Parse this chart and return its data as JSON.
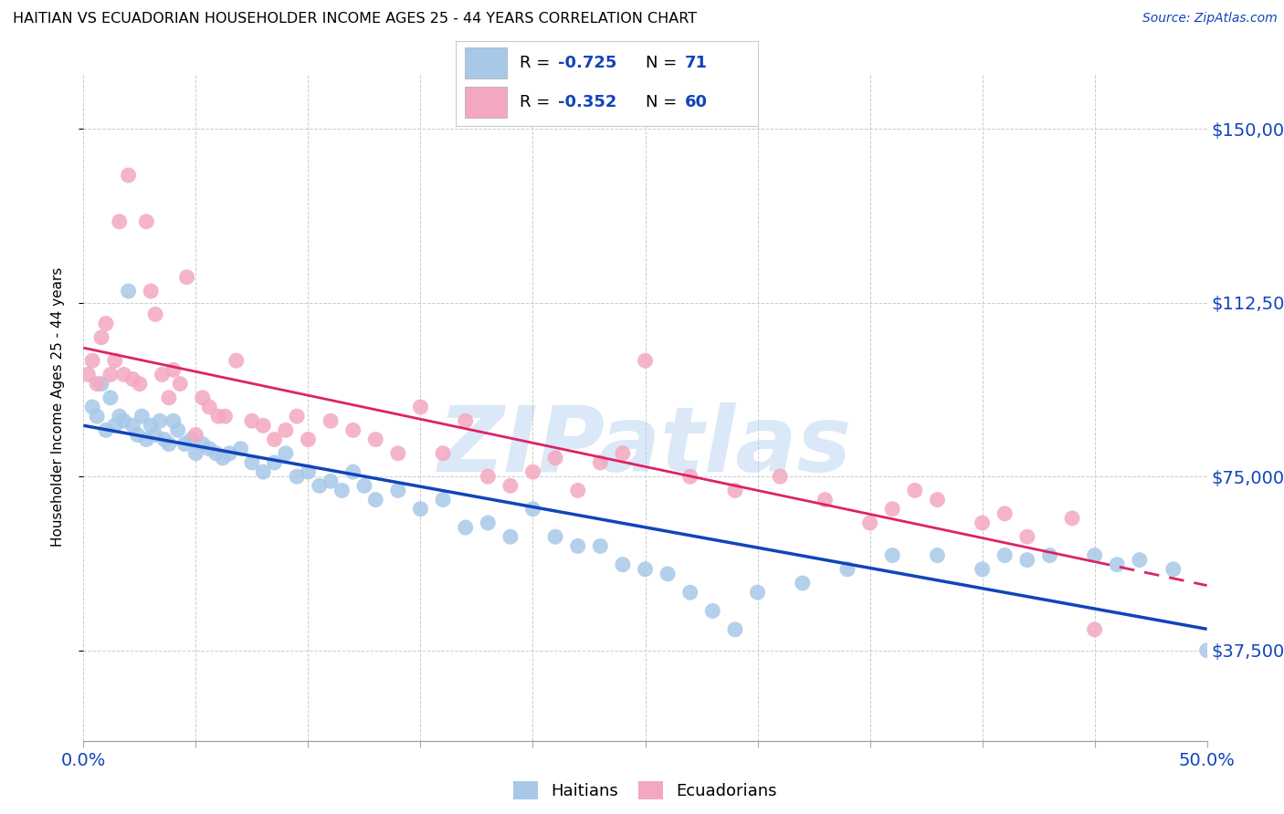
{
  "title": "HAITIAN VS ECUADORIAN HOUSEHOLDER INCOME AGES 25 - 44 YEARS CORRELATION CHART",
  "source": "Source: ZipAtlas.com",
  "ylabel": "Householder Income Ages 25 - 44 years",
  "xmin": 0.0,
  "xmax": 50.0,
  "ymin": 18000,
  "ymax": 162000,
  "yticks": [
    37500,
    75000,
    112500,
    150000
  ],
  "ytick_labels": [
    "$37,500",
    "$75,000",
    "$112,500",
    "$150,000"
  ],
  "haitian_color": "#a8c8e8",
  "haitian_line_color": "#1144bb",
  "ecuadorian_color": "#f4a8c0",
  "ecuadorian_line_color": "#dd2266",
  "watermark": "ZIPatlas",
  "legend_R_haitian": "-0.725",
  "legend_N_haitian": "71",
  "legend_R_ecuadorian": "-0.352",
  "legend_N_ecuadorian": "60",
  "haitian_x": [
    0.4,
    0.6,
    0.8,
    1.0,
    1.2,
    1.4,
    1.6,
    1.8,
    2.0,
    2.2,
    2.4,
    2.6,
    2.8,
    3.0,
    3.2,
    3.4,
    3.6,
    3.8,
    4.0,
    4.2,
    4.5,
    4.8,
    5.0,
    5.3,
    5.6,
    5.9,
    6.2,
    6.5,
    7.0,
    7.5,
    8.0,
    8.5,
    9.0,
    9.5,
    10.0,
    10.5,
    11.0,
    11.5,
    12.0,
    12.5,
    13.0,
    14.0,
    15.0,
    16.0,
    17.0,
    18.0,
    19.0,
    20.0,
    21.0,
    22.0,
    23.0,
    24.0,
    25.0,
    26.0,
    27.0,
    28.0,
    29.0,
    30.0,
    32.0,
    34.0,
    36.0,
    38.0,
    40.0,
    41.0,
    42.0,
    43.0,
    45.0,
    46.0,
    47.0,
    48.5,
    50.0
  ],
  "haitian_y": [
    90000,
    88000,
    95000,
    85000,
    92000,
    86000,
    88000,
    87000,
    115000,
    86000,
    84000,
    88000,
    83000,
    86000,
    84000,
    87000,
    83000,
    82000,
    87000,
    85000,
    82000,
    83000,
    80000,
    82000,
    81000,
    80000,
    79000,
    80000,
    81000,
    78000,
    76000,
    78000,
    80000,
    75000,
    76000,
    73000,
    74000,
    72000,
    76000,
    73000,
    70000,
    72000,
    68000,
    70000,
    64000,
    65000,
    62000,
    68000,
    62000,
    60000,
    60000,
    56000,
    55000,
    54000,
    50000,
    46000,
    42000,
    50000,
    52000,
    55000,
    58000,
    58000,
    55000,
    58000,
    57000,
    58000,
    58000,
    56000,
    57000,
    55000,
    37500
  ],
  "ecuadorian_x": [
    0.2,
    0.4,
    0.6,
    0.8,
    1.0,
    1.2,
    1.4,
    1.6,
    1.8,
    2.0,
    2.2,
    2.5,
    2.8,
    3.0,
    3.2,
    3.5,
    3.8,
    4.0,
    4.3,
    4.6,
    5.0,
    5.3,
    5.6,
    6.0,
    6.3,
    6.8,
    7.5,
    8.0,
    8.5,
    9.0,
    9.5,
    10.0,
    11.0,
    12.0,
    13.0,
    14.0,
    15.0,
    16.0,
    17.0,
    18.0,
    19.0,
    20.0,
    21.0,
    22.0,
    23.0,
    24.0,
    25.0,
    27.0,
    29.0,
    31.0,
    33.0,
    35.0,
    36.0,
    37.0,
    38.0,
    40.0,
    41.0,
    42.0,
    44.0,
    45.0
  ],
  "ecuadorian_y": [
    97000,
    100000,
    95000,
    105000,
    108000,
    97000,
    100000,
    130000,
    97000,
    140000,
    96000,
    95000,
    130000,
    115000,
    110000,
    97000,
    92000,
    98000,
    95000,
    118000,
    84000,
    92000,
    90000,
    88000,
    88000,
    100000,
    87000,
    86000,
    83000,
    85000,
    88000,
    83000,
    87000,
    85000,
    83000,
    80000,
    90000,
    80000,
    87000,
    75000,
    73000,
    76000,
    79000,
    72000,
    78000,
    80000,
    100000,
    75000,
    72000,
    75000,
    70000,
    65000,
    68000,
    72000,
    70000,
    65000,
    67000,
    62000,
    66000,
    42000
  ]
}
